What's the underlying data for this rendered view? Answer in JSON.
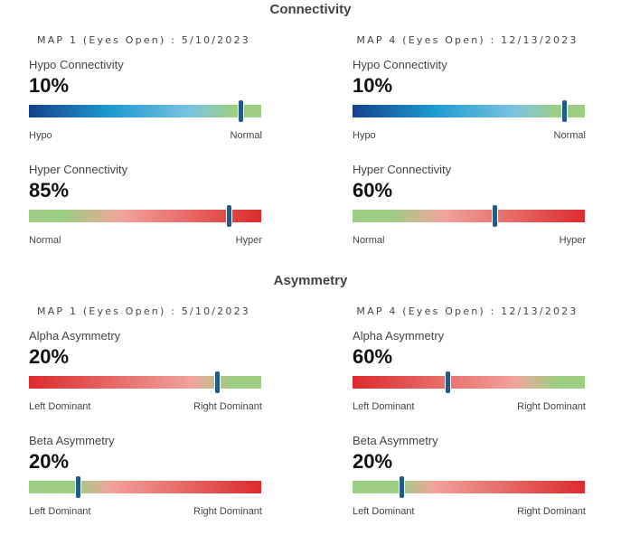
{
  "sections": [
    {
      "title": "Connectivity",
      "columns": [
        {
          "header": "MAP 1 (Eyes Open) : 5/10/2023",
          "metrics": [
            {
              "label": "Hypo Connectivity",
              "value_text": "10%",
              "marker_fraction": 0.91,
              "gradient": "hypo",
              "left_label": "Hypo",
              "right_label": "Normal"
            },
            {
              "label": "Hyper Connectivity",
              "value_text": "85%",
              "marker_fraction": 0.86,
              "gradient": "hyper",
              "left_label": "Normal",
              "right_label": "Hyper"
            }
          ]
        },
        {
          "header": "MAP 4 (Eyes Open) : 12/13/2023",
          "metrics": [
            {
              "label": "Hypo Connectivity",
              "value_text": "10%",
              "marker_fraction": 0.91,
              "gradient": "hypo",
              "left_label": "Hypo",
              "right_label": "Normal"
            },
            {
              "label": "Hyper Connectivity",
              "value_text": "60%",
              "marker_fraction": 0.61,
              "gradient": "hyper",
              "left_label": "Normal",
              "right_label": "Hyper"
            }
          ]
        }
      ]
    },
    {
      "title": "Asymmetry",
      "columns": [
        {
          "header": "MAP 1 (Eyes Open) : 5/10/2023",
          "metrics": [
            {
              "label": "Alpha Asymmetry",
              "value_text": "20%",
              "marker_fraction": 0.81,
              "gradient": "red_to_green",
              "left_label": "Left Dominant",
              "right_label": "Right Dominant"
            },
            {
              "label": "Beta Asymmetry",
              "value_text": "20%",
              "marker_fraction": 0.21,
              "gradient": "green_to_red",
              "left_label": "Left Dominant",
              "right_label": "Right Dominant"
            }
          ]
        },
        {
          "header": "MAP 4 (Eyes Open) : 12/13/2023",
          "metrics": [
            {
              "label": "Alpha Asymmetry",
              "value_text": "60%",
              "marker_fraction": 0.41,
              "gradient": "red_to_green",
              "left_label": "Left Dominant",
              "right_label": "Right Dominant"
            },
            {
              "label": "Beta Asymmetry",
              "value_text": "20%",
              "marker_fraction": 0.21,
              "gradient": "green_to_red",
              "left_label": "Left Dominant",
              "right_label": "Right Dominant"
            }
          ]
        }
      ]
    }
  ],
  "colors": {
    "dark_blue": "#16418c",
    "mid_blue": "#1a9bd1",
    "light_blue": "#7cc3e0",
    "green": "#9ccf84",
    "pink": "#f0a39a",
    "red": "#dc2b2e",
    "marker": "#1f5c8c"
  }
}
